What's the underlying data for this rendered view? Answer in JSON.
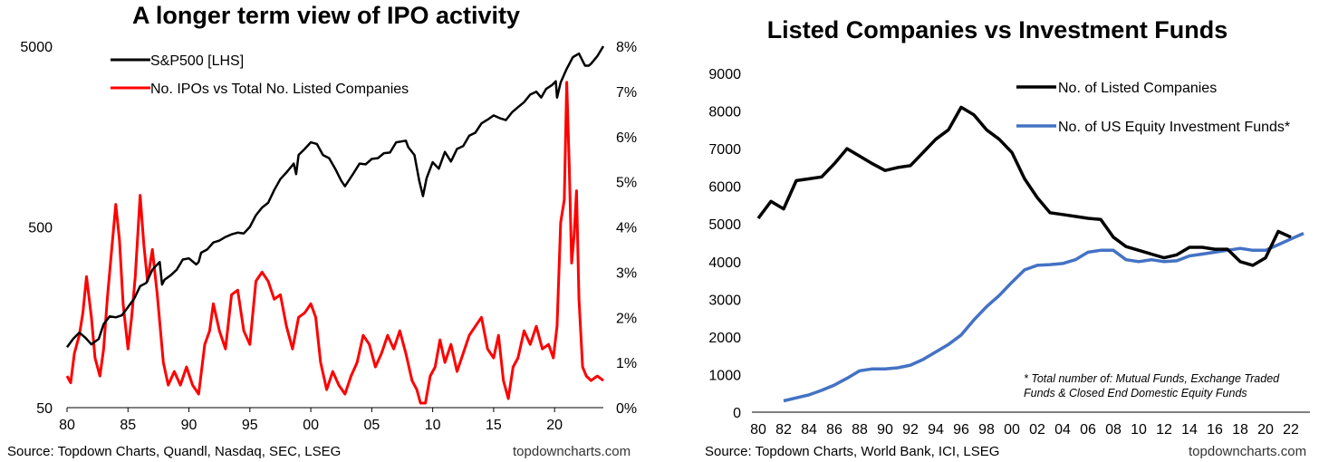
{
  "left": {
    "title": "A longer term view of IPO activity",
    "source": "Source: Topdown Charts, Quandl, Nasdaq, SEC, LSEG",
    "site": "topdowncharts.com"
  },
  "right": {
    "title": "Listed Companies vs Investment Funds",
    "source": "Source: Topdown Charts, World Bank, ICI, LSEG",
    "site": "topdowncharts.com",
    "footnote": "* Total number of: Mutual Funds, Exchange Traded\nFunds & Closed End Domestic Equity Funds"
  },
  "chart_data": [
    {
      "type": "line",
      "title": "A longer term view of IPO activity",
      "x_ticks": [
        "80",
        "85",
        "90",
        "95",
        "00",
        "05",
        "10",
        "15",
        "20"
      ],
      "x_range": [
        1980,
        2024
      ],
      "y_left": {
        "scale": "log",
        "range": [
          50,
          5000
        ],
        "ticks": [
          "50",
          "500",
          "5000"
        ]
      },
      "y_right": {
        "scale": "linear",
        "range": [
          0,
          8
        ],
        "ticks": [
          "0%",
          "1%",
          "2%",
          "3%",
          "4%",
          "5%",
          "6%",
          "7%",
          "8%"
        ]
      },
      "legend_position": "top-left",
      "series": [
        {
          "name": "S&P500 [LHS]",
          "axis": "left",
          "color": "#000000",
          "x": [
            1980,
            1980.5,
            1981,
            1981.5,
            1982,
            1982.6,
            1983,
            1983.5,
            1984,
            1984.5,
            1985,
            1985.5,
            1986,
            1986.5,
            1987,
            1987.6,
            1987.8,
            1988,
            1988.5,
            1989,
            1989.5,
            1990,
            1990.6,
            1990.8,
            1991,
            1991.5,
            1992,
            1992.5,
            1993,
            1993.5,
            1994,
            1994.5,
            1995,
            1995.5,
            1996,
            1996.5,
            1997,
            1997.5,
            1998,
            1998.6,
            1998.8,
            1999,
            1999.5,
            2000,
            2000.5,
            2001,
            2001.5,
            2002,
            2002.5,
            2002.8,
            2003,
            2003.5,
            2004,
            2004.5,
            2005,
            2005.5,
            2006,
            2006.5,
            2007,
            2007.8,
            2008,
            2008.5,
            2008.9,
            2009.2,
            2009.5,
            2010,
            2010.5,
            2011,
            2011.5,
            2012,
            2012.5,
            2013,
            2013.5,
            2014,
            2014.5,
            2015,
            2015.5,
            2016,
            2016.5,
            2017,
            2017.5,
            2018,
            2018.5,
            2018.9,
            2019.3,
            2019.8,
            2020.1,
            2020.2,
            2020.5,
            2021,
            2021.5,
            2022,
            2022.5,
            2022.8,
            2023,
            2023.5,
            2024
          ],
          "values": [
            108,
            120,
            130,
            122,
            112,
            120,
            145,
            160,
            158,
            162,
            180,
            200,
            235,
            245,
            290,
            320,
            240,
            255,
            270,
            290,
            330,
            335,
            310,
            320,
            360,
            375,
            410,
            420,
            440,
            455,
            465,
            460,
            500,
            580,
            640,
            680,
            800,
            920,
            1000,
            1120,
            980,
            1250,
            1350,
            1470,
            1440,
            1250,
            1200,
            1050,
            900,
            840,
            880,
            990,
            1120,
            1110,
            1190,
            1200,
            1280,
            1290,
            1470,
            1500,
            1380,
            1250,
            900,
            740,
            930,
            1140,
            1050,
            1300,
            1150,
            1350,
            1400,
            1600,
            1660,
            1870,
            1960,
            2070,
            2000,
            1950,
            2150,
            2300,
            2450,
            2700,
            2800,
            2600,
            2900,
            3050,
            3200,
            2600,
            3150,
            3750,
            4350,
            4550,
            3900,
            3900,
            4000,
            4400,
            5000
          ]
        },
        {
          "name": "No. IPOs vs Total No. Listed Companies",
          "axis": "right",
          "color": "#ff0000",
          "x": [
            1980,
            1980.3,
            1980.6,
            1981,
            1981.3,
            1981.6,
            1982,
            1982.3,
            1982.7,
            1983,
            1983.3,
            1983.6,
            1984,
            1984.3,
            1984.6,
            1985,
            1985.3,
            1985.6,
            1986,
            1986.3,
            1986.6,
            1987,
            1987.4,
            1987.9,
            1988.3,
            1988.8,
            1989.3,
            1989.8,
            1990.3,
            1990.8,
            1991.3,
            1991.7,
            1992,
            1992.5,
            1993,
            1993.5,
            1994,
            1994.5,
            1995,
            1995.5,
            1996,
            1996.5,
            1997,
            1997.5,
            1998,
            1998.5,
            1999,
            1999.5,
            2000,
            2000.4,
            2000.8,
            2001.3,
            2001.8,
            2002.3,
            2002.8,
            2003.3,
            2003.8,
            2004.3,
            2004.8,
            2005.3,
            2005.8,
            2006.3,
            2006.8,
            2007.3,
            2007.8,
            2008.3,
            2008.7,
            2009,
            2009.4,
            2009.8,
            2010.2,
            2010.6,
            2011,
            2011.5,
            2012,
            2012.5,
            2013,
            2013.5,
            2014,
            2014.5,
            2015,
            2015.4,
            2015.8,
            2016.2,
            2016.6,
            2017,
            2017.5,
            2018,
            2018.5,
            2019,
            2019.5,
            2019.9,
            2020.2,
            2020.5,
            2020.8,
            2021,
            2021.2,
            2021.4,
            2021.6,
            2021.8,
            2022,
            2022.3,
            2022.6,
            2023,
            2023.5,
            2024
          ],
          "values": [
            0.7,
            0.55,
            1.2,
            1.6,
            2.1,
            2.9,
            2.0,
            1.1,
            0.7,
            1.3,
            2.4,
            3.3,
            4.5,
            3.7,
            2.3,
            1.3,
            2.0,
            2.9,
            4.7,
            3.6,
            2.8,
            3.5,
            2.5,
            1.0,
            0.5,
            0.8,
            0.5,
            0.9,
            0.5,
            0.3,
            1.4,
            1.7,
            2.3,
            1.7,
            1.3,
            2.5,
            2.6,
            1.7,
            1.4,
            2.8,
            3.0,
            2.8,
            2.4,
            2.5,
            1.8,
            1.3,
            2.0,
            2.1,
            2.3,
            2.0,
            1.0,
            0.4,
            0.8,
            0.5,
            0.3,
            0.7,
            1.0,
            1.6,
            1.4,
            0.9,
            1.2,
            1.6,
            1.3,
            1.7,
            1.2,
            0.6,
            0.4,
            0.1,
            0.1,
            0.7,
            0.9,
            1.5,
            1.0,
            1.4,
            0.8,
            1.2,
            1.6,
            1.8,
            2.0,
            1.3,
            1.1,
            1.6,
            0.6,
            0.2,
            0.9,
            1.1,
            1.7,
            1.4,
            1.8,
            1.3,
            1.4,
            1.1,
            1.8,
            4.1,
            4.6,
            7.2,
            5.4,
            3.2,
            3.8,
            4.8,
            2.4,
            0.9,
            0.7,
            0.6,
            0.7,
            0.6
          ]
        }
      ]
    },
    {
      "type": "line",
      "title": "Listed Companies vs Investment Funds",
      "x_ticks": [
        "80",
        "82",
        "84",
        "86",
        "88",
        "90",
        "92",
        "94",
        "96",
        "98",
        "00",
        "02",
        "04",
        "06",
        "08",
        "10",
        "12",
        "14",
        "16",
        "18",
        "20",
        "22"
      ],
      "x_range": [
        1979.5,
        2023.5
      ],
      "y_range": [
        0,
        9000
      ],
      "y_ticks": [
        "0",
        "1000",
        "2000",
        "3000",
        "4000",
        "5000",
        "6000",
        "7000",
        "8000",
        "9000"
      ],
      "legend_position": "top-right",
      "series": [
        {
          "name": "No. of Listed Companies",
          "color": "#000000",
          "x": [
            1980,
            1981,
            1982,
            1983,
            1984,
            1985,
            1986,
            1987,
            1988,
            1989,
            1990,
            1991,
            1992,
            1993,
            1994,
            1995,
            1996,
            1997,
            1998,
            1999,
            2000,
            2001,
            2002,
            2003,
            2004,
            2005,
            2006,
            2007,
            2008,
            2009,
            2010,
            2011,
            2012,
            2013,
            2014,
            2015,
            2016,
            2017,
            2018,
            2019,
            2020,
            2021,
            2022
          ],
          "values": [
            5150,
            5600,
            5400,
            6150,
            6200,
            6250,
            6600,
            7000,
            6800,
            6600,
            6420,
            6500,
            6550,
            6900,
            7250,
            7500,
            8100,
            7900,
            7500,
            7250,
            6900,
            6200,
            5700,
            5300,
            5250,
            5200,
            5150,
            5120,
            4650,
            4400,
            4300,
            4200,
            4100,
            4180,
            4380,
            4380,
            4330,
            4330,
            4000,
            3900,
            4100,
            4800,
            4650
          ]
        },
        {
          "name": "No. of US Equity Investment Funds*",
          "color": "#4472c4",
          "x": [
            1982,
            1983,
            1984,
            1985,
            1986,
            1987,
            1988,
            1989,
            1990,
            1991,
            1992,
            1993,
            1994,
            1995,
            1996,
            1997,
            1998,
            1999,
            2000,
            2001,
            2002,
            2003,
            2004,
            2005,
            2006,
            2007,
            2008,
            2009,
            2010,
            2011,
            2012,
            2013,
            2014,
            2015,
            2016,
            2017,
            2018,
            2019,
            2020,
            2021,
            2022,
            2023
          ],
          "values": [
            300,
            380,
            460,
            580,
            720,
            900,
            1100,
            1150,
            1150,
            1180,
            1250,
            1400,
            1600,
            1800,
            2050,
            2450,
            2800,
            3100,
            3450,
            3780,
            3900,
            3920,
            3950,
            4050,
            4250,
            4300,
            4300,
            4050,
            4000,
            4050,
            4000,
            4020,
            4150,
            4200,
            4250,
            4300,
            4350,
            4300,
            4300,
            4450,
            4600,
            4750
          ]
        }
      ]
    }
  ]
}
